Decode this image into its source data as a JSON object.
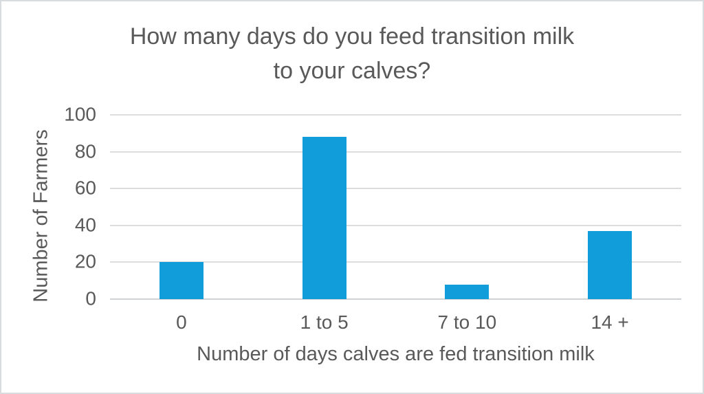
{
  "colors": {
    "bar": "#119DD9",
    "text": "#595959",
    "gridline": "#DCDCDC",
    "axis_line": "#CFD2D4",
    "frame_border": "#D9DCDE",
    "background": "#FFFFFF"
  },
  "chart_data": {
    "type": "bar",
    "title": "How many days do you feed transition milk to your calves?",
    "title_lines": [
      "How many days do you feed transition milk",
      "to your calves?"
    ],
    "categories": [
      "0",
      "1 to 5",
      "7 to 10",
      "14 +"
    ],
    "values": [
      20,
      88,
      8,
      37
    ],
    "xlabel": "Number of days calves are fed transition milk",
    "ylabel": "Number of Farmers",
    "ylim": [
      0,
      100
    ],
    "yticks": [
      0,
      20,
      40,
      60,
      80,
      100
    ],
    "grid": "horizontal",
    "legend_position": "none",
    "bar_color": "#119DD9"
  }
}
